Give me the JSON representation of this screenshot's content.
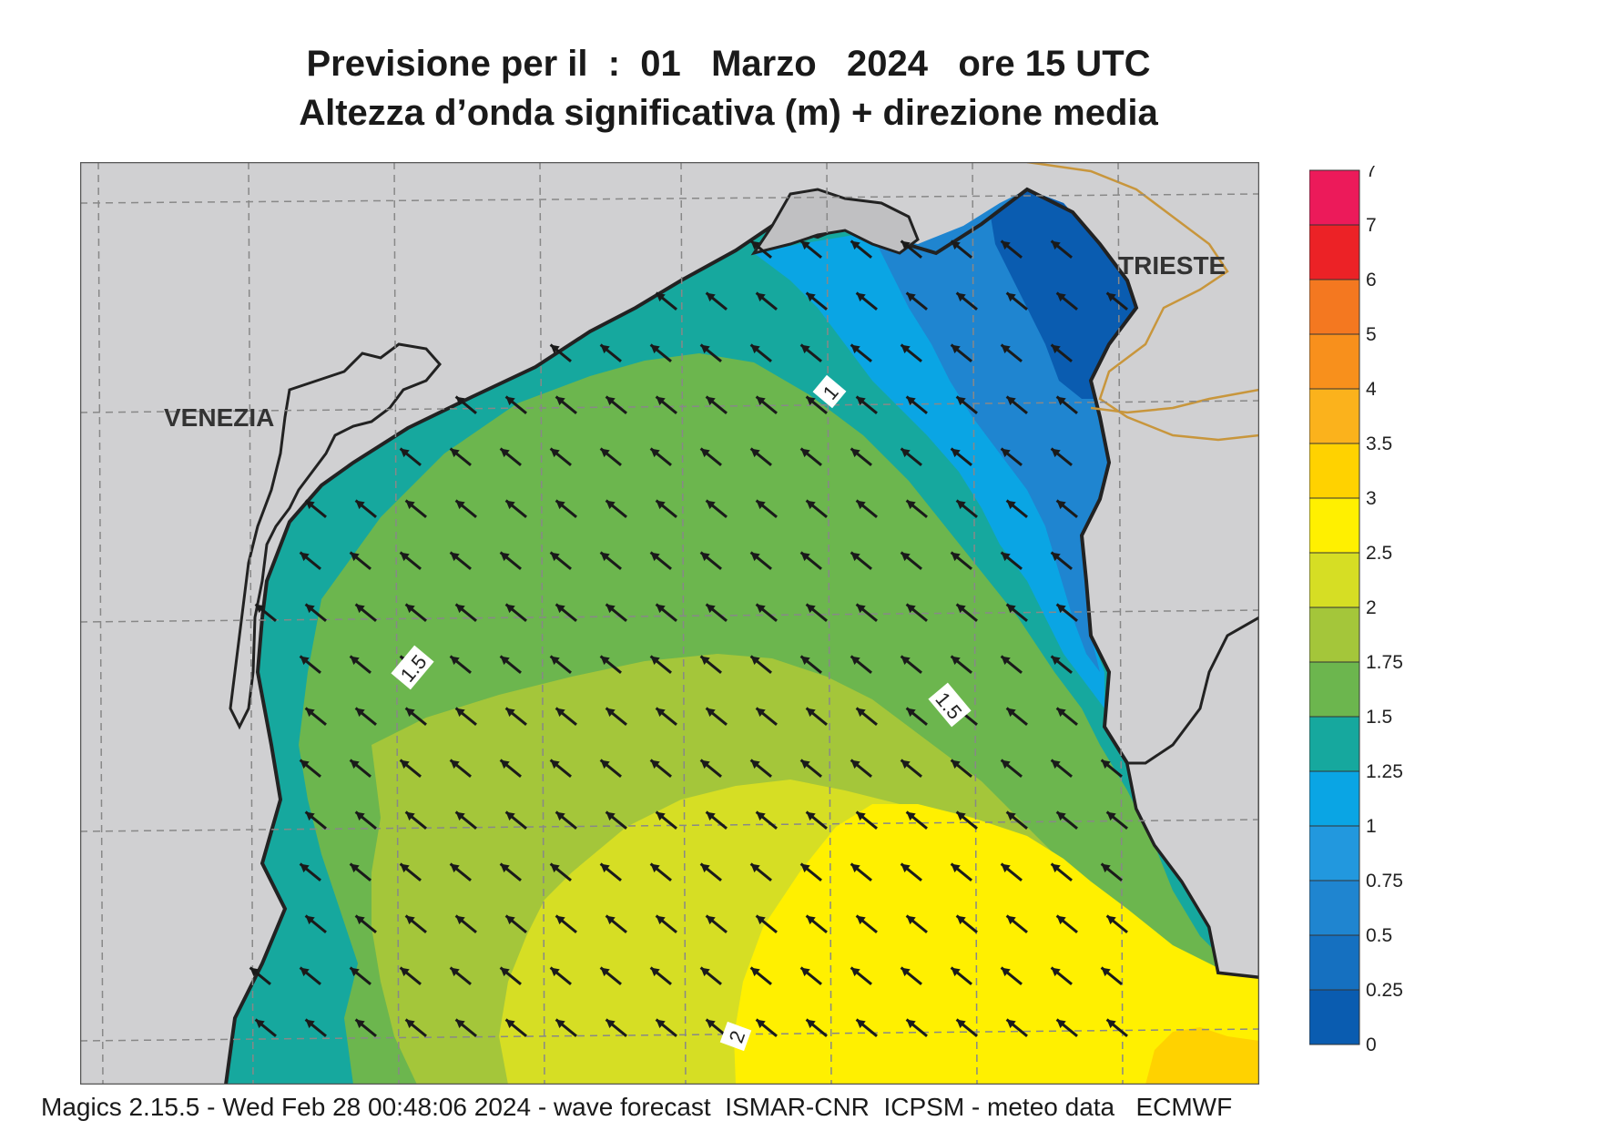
{
  "header": {
    "title_line1": "Previsione per il  :  01   Marzo   2024   ore 15 UTC",
    "title_line2": "Altezza d’onda significativa (m) + direzione media"
  },
  "map": {
    "region": "Northern Adriatic Sea",
    "cities": [
      {
        "name": "VENEZIA"
      },
      {
        "name": "TRIESTE"
      }
    ],
    "contour_labels": [
      "1",
      "1.5",
      "1.5",
      "2"
    ],
    "land_color": "#d0d0d2",
    "coastline_color": "#222222",
    "border_color": "#c8963c",
    "arrow_direction": "north-west",
    "grid": "dashed"
  },
  "legend": {
    "units": "m",
    "bins": [
      {
        "label": "0",
        "color": "#0a5cb0"
      },
      {
        "label": "0.25",
        "color": "#1570c0"
      },
      {
        "label": "0.5",
        "color": "#1f85d0"
      },
      {
        "label": "0.75",
        "color": "#2298de"
      },
      {
        "label": "1",
        "color": "#0aa5e4"
      },
      {
        "label": "1.25",
        "color": "#16a89e"
      },
      {
        "label": "1.5",
        "color": "#6cb64e"
      },
      {
        "label": "1.75",
        "color": "#a4c63a"
      },
      {
        "label": "2",
        "color": "#d6de24"
      },
      {
        "label": "2.5",
        "color": "#fff000"
      },
      {
        "label": "3",
        "color": "#ffd200"
      },
      {
        "label": "3.5",
        "color": "#fbb21c"
      },
      {
        "label": "4",
        "color": "#f8901c"
      },
      {
        "label": "5",
        "color": "#f47820"
      },
      {
        "label": "6",
        "color": "#ec2226"
      },
      {
        "label": "7",
        "color": "#ec1a5a"
      }
    ],
    "top_label": "7"
  },
  "footer": {
    "text": "Magics 2.15.5 - Wed Feb 28 00:48:06 2024 - wave forecast  ISMAR-CNR  ICPSM - meteo data   ECMWF"
  }
}
